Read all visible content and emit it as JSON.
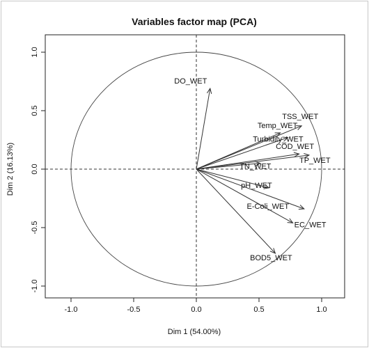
{
  "chart_data": {
    "type": "scatter",
    "title": "Variables factor map (PCA)",
    "xlabel": "Dim 1 (54.00%)",
    "ylabel": "Dim 2 (16.13%)",
    "xlim": [
      -1.1,
      1.1
    ],
    "ylim": [
      -1.0,
      1.0
    ],
    "xticks": [
      "-1.0",
      "-0.5",
      "0.0",
      "0.5",
      "1.0"
    ],
    "yticks": [
      "-1.0",
      "-0.5",
      "0.0",
      "0.5",
      "1.0"
    ],
    "unit_circle": true,
    "reference_lines": {
      "x": 0,
      "y": 0,
      "style": "dashed"
    },
    "variables": [
      {
        "name": "DO_WET",
        "x": 0.11,
        "y": 0.69
      },
      {
        "name": "TSS_WET",
        "x": 0.84,
        "y": 0.37
      },
      {
        "name": "Temp_WET",
        "x": 0.67,
        "y": 0.31
      },
      {
        "name": "Turbidity_WET",
        "x": 0.73,
        "y": 0.27
      },
      {
        "name": "COD_WET",
        "x": 0.82,
        "y": 0.13
      },
      {
        "name": "TP_WET",
        "x": 0.9,
        "y": 0.12
      },
      {
        "name": "TN_WET",
        "x": 0.51,
        "y": 0.05
      },
      {
        "name": "pH_WET",
        "x": 0.58,
        "y": -0.16
      },
      {
        "name": "E-Coli_WET",
        "x": 0.86,
        "y": -0.34
      },
      {
        "name": "EC_WET",
        "x": 0.77,
        "y": -0.46
      },
      {
        "name": "BOD5_WET",
        "x": 0.63,
        "y": -0.72
      }
    ]
  }
}
